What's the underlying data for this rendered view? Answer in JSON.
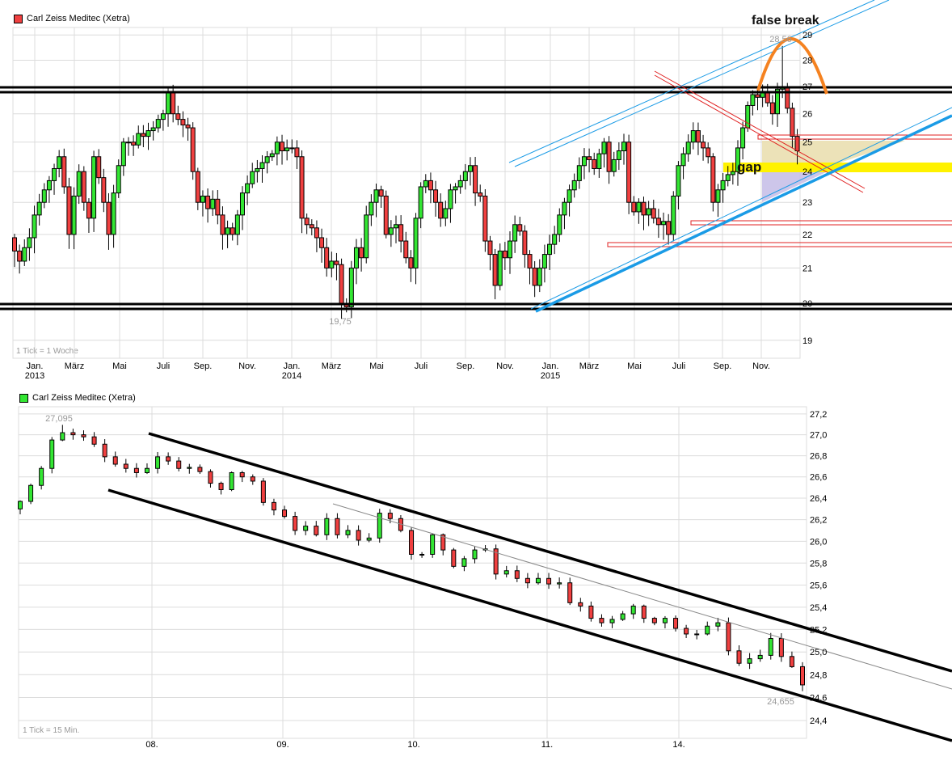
{
  "colors": {
    "up": "#33e633",
    "down": "#f04040",
    "grid": "#dcdcdc",
    "channel_blue": "#1a9be6",
    "resistance_red": "#e02020",
    "arc_orange": "#f58220",
    "gap_yellow": "#fff200",
    "zone_beige": "#eadfb0",
    "zone_lavender": "#c8c0e8"
  },
  "chart_data": [
    {
      "type": "candlestick",
      "legend": "Carl Zeiss Meditec (Xetra)",
      "tick_note": "1 Tick = 1 Woche",
      "y_scale": "log",
      "ylim": [
        18.7,
        29.6
      ],
      "y_ticks": [
        "19",
        "20",
        "21",
        "22",
        "23",
        "24",
        "25",
        "26",
        "27",
        "28",
        "29"
      ],
      "x_ticks": [
        {
          "month": "Jan.",
          "year": "2013"
        },
        {
          "month": "März"
        },
        {
          "month": "Mai"
        },
        {
          "month": "Juli"
        },
        {
          "month": "Sep."
        },
        {
          "month": "Nov."
        },
        {
          "month": "Jan.",
          "year": "2014"
        },
        {
          "month": "März"
        },
        {
          "month": "Mai"
        },
        {
          "month": "Juli"
        },
        {
          "month": "Sep."
        },
        {
          "month": "Nov."
        },
        {
          "month": "Jan.",
          "year": "2015"
        },
        {
          "month": "März"
        },
        {
          "month": "Mai"
        },
        {
          "month": "Juli"
        },
        {
          "month": "Sep."
        },
        {
          "month": "Nov."
        }
      ],
      "grid": true,
      "weekly_close": [
        21.5,
        21.2,
        21.6,
        21.9,
        22.6,
        23.0,
        23.4,
        23.7,
        24.1,
        24.5,
        23.5,
        22.0,
        23.2,
        24.0,
        23.0,
        22.5,
        24.5,
        23.8,
        23.0,
        22.0,
        23.3,
        24.2,
        25.0,
        25.0,
        24.9,
        25.3,
        25.2,
        25.4,
        25.5,
        25.8,
        26.0,
        26.8,
        26.0,
        25.8,
        25.6,
        25.5,
        24.0,
        23.0,
        23.2,
        22.8,
        23.1,
        22.6,
        22.0,
        22.2,
        22.0,
        22.6,
        23.3,
        23.6,
        24.0,
        24.1,
        24.3,
        24.5,
        24.6,
        25.0,
        24.7,
        24.8,
        24.8,
        24.5,
        22.5,
        22.3,
        22.2,
        21.9,
        21.6,
        21.0,
        21.2,
        21.1,
        20.0,
        19.9,
        21.0,
        21.6,
        21.3,
        22.6,
        23.0,
        23.4,
        23.2,
        22.0,
        22.2,
        22.3,
        21.8,
        21.3,
        21.0,
        22.5,
        23.5,
        23.7,
        23.4,
        23.0,
        22.5,
        22.8,
        23.4,
        23.5,
        23.7,
        24.0,
        24.2,
        23.3,
        23.2,
        21.8,
        21.4,
        20.5,
        21.5,
        21.3,
        21.8,
        22.3,
        22.1,
        21.4,
        21.0,
        20.5,
        21.0,
        21.4,
        21.7,
        22.0,
        22.6,
        23.0,
        23.4,
        23.7,
        24.2,
        24.5,
        24.4,
        24.1,
        24.6,
        25.0,
        24.0,
        24.4,
        24.7,
        25.0,
        23.0,
        22.7,
        23.0,
        22.6,
        22.8,
        22.5,
        22.3,
        22.4,
        22.0,
        23.2,
        24.2,
        24.6,
        25.0,
        25.4,
        25.0,
        24.8,
        24.5,
        23.0,
        23.4,
        23.7,
        23.9,
        24.0,
        24.8,
        25.5,
        26.3,
        26.7,
        26.6,
        26.8,
        26.4,
        26.0,
        26.9,
        27.0,
        26.2,
        25.2,
        24.7
      ],
      "high_label": "28,56",
      "high_value": 28.56,
      "low_label": "19,75",
      "low_value": 19.75,
      "annotations": {
        "false_break": "false break",
        "gap": "gap"
      },
      "support_resistance": [
        20.0,
        26.9
      ],
      "zones": [
        25.1,
        22.3,
        21.7
      ]
    },
    {
      "type": "candlestick",
      "legend": "Carl Zeiss Meditec (Xetra)",
      "tick_note": "1 Tick = 15 Min.",
      "y_scale": "log",
      "ylim": [
        24.25,
        27.3
      ],
      "y_ticks": [
        "24,4",
        "24,6",
        "24,8",
        "25,0",
        "25,2",
        "25,4",
        "25,6",
        "25,8",
        "26,0",
        "26,2",
        "26,4",
        "26,6",
        "26,8",
        "27,0",
        "27,2"
      ],
      "x_ticks": [
        "08.",
        "09.",
        "10.",
        "11.",
        "14."
      ],
      "grid": true,
      "close": [
        26.37,
        26.52,
        26.68,
        26.95,
        27.02,
        27.0,
        26.98,
        26.91,
        26.79,
        26.72,
        26.68,
        26.64,
        26.68,
        26.79,
        26.75,
        26.68,
        26.69,
        26.65,
        26.54,
        26.48,
        26.64,
        26.6,
        26.56,
        26.36,
        26.29,
        26.23,
        26.1,
        26.14,
        26.06,
        26.21,
        26.06,
        26.1,
        26.01,
        26.03,
        26.26,
        26.21,
        26.1,
        25.88,
        25.88,
        26.06,
        25.92,
        25.77,
        25.84,
        25.92,
        25.93,
        25.7,
        25.73,
        25.66,
        25.62,
        25.66,
        25.61,
        25.62,
        25.44,
        25.41,
        25.3,
        25.26,
        25.29,
        25.34,
        25.41,
        25.3,
        25.26,
        25.3,
        25.21,
        25.16,
        25.16,
        25.23,
        25.26,
        25.01,
        24.9,
        24.94,
        24.97,
        25.12,
        24.96,
        24.87,
        24.71
      ],
      "high_label": "27,095",
      "high_value": 27.095,
      "low_label": "24,655",
      "low_value": 24.655
    }
  ]
}
